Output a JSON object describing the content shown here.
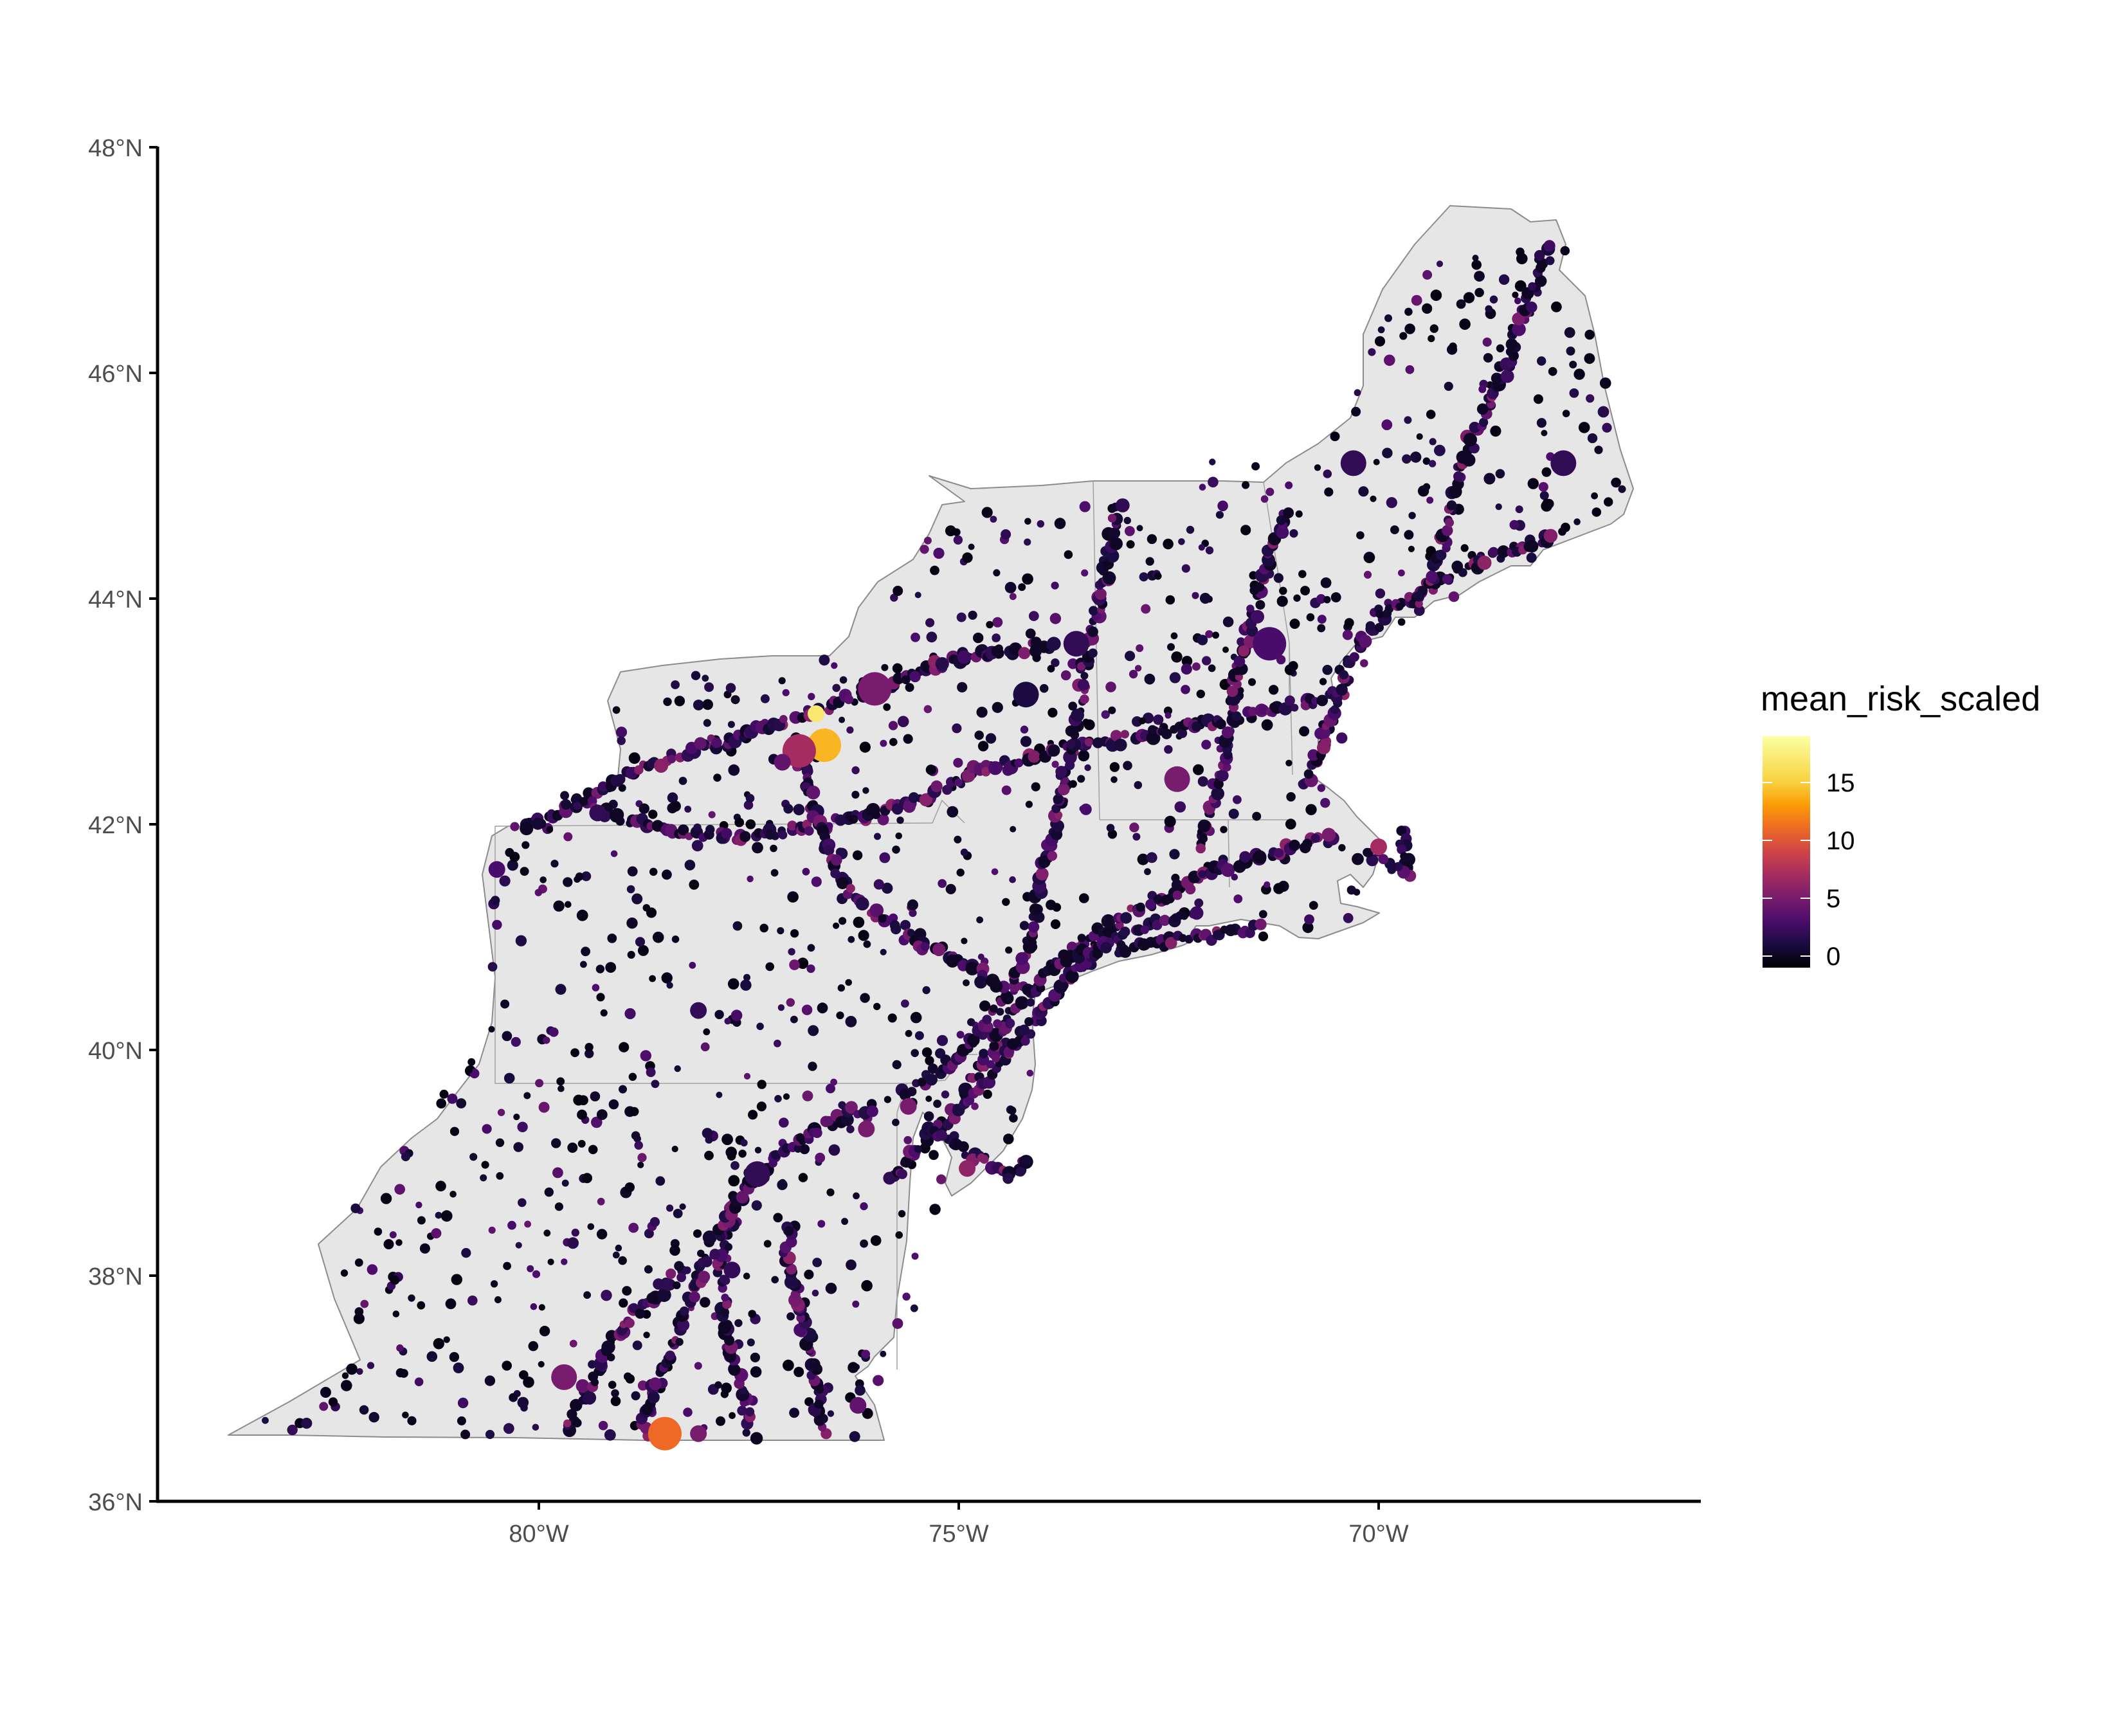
{
  "chart_data": {
    "type": "scatter",
    "x_ticks": [
      "80°W",
      "75°W",
      "70°W"
    ],
    "x_tick_values": [
      -80,
      -75,
      -70
    ],
    "y_ticks": [
      "36°N",
      "38°N",
      "40°N",
      "42°N",
      "44°N",
      "46°N",
      "48°N"
    ],
    "y_tick_values": [
      36,
      38,
      40,
      42,
      44,
      46,
      48
    ],
    "xlim": [
      -84.5,
      -66.2
    ],
    "ylim": [
      36,
      48
    ],
    "legend": {
      "title": "mean_risk_scaled",
      "labels": [
        "15",
        "10",
        "5",
        "0"
      ],
      "values": [
        15,
        10,
        5,
        0
      ],
      "range": [
        -1,
        19
      ],
      "placement": "right",
      "palette": "inferno"
    },
    "colors": {
      "land_fill": "#e6e6e6",
      "border": "#8c8c8c",
      "axis": "#000000",
      "colorbar_top": "#fcffa4",
      "colorbar_bottom": "#000004"
    },
    "highlighted_points": [
      {
        "lon": -76.6,
        "lat": 42.7,
        "risk": 14,
        "size": 3
      },
      {
        "lon": -76.9,
        "lat": 42.65,
        "risk": 7,
        "size": 3
      },
      {
        "lon": -76.7,
        "lat": 42.98,
        "risk": 17,
        "size": 1
      },
      {
        "lon": -76.0,
        "lat": 43.2,
        "risk": 5,
        "size": 3
      },
      {
        "lon": -78.5,
        "lat": 36.6,
        "risk": 11,
        "size": 3
      },
      {
        "lon": -78.1,
        "lat": 36.6,
        "risk": 5,
        "size": 1
      },
      {
        "lon": -79.7,
        "lat": 37.1,
        "risk": 5,
        "size": 2
      },
      {
        "lon": -71.3,
        "lat": 43.6,
        "risk": 3,
        "size": 3
      },
      {
        "lon": -73.6,
        "lat": 43.6,
        "risk": 2,
        "size": 2
      },
      {
        "lon": -74.2,
        "lat": 43.15,
        "risk": 1,
        "size": 2
      },
      {
        "lon": -72.4,
        "lat": 42.4,
        "risk": 5,
        "size": 2
      },
      {
        "lon": -70.3,
        "lat": 45.2,
        "risk": 2,
        "size": 2
      },
      {
        "lon": -67.8,
        "lat": 45.2,
        "risk": 2,
        "size": 2
      },
      {
        "lon": -80.5,
        "lat": 41.6,
        "risk": 3,
        "size": 1
      },
      {
        "lon": -77.1,
        "lat": 42.55,
        "risk": 4,
        "size": 1
      },
      {
        "lon": -78.1,
        "lat": 40.35,
        "risk": 2,
        "size": 1
      },
      {
        "lon": -77.7,
        "lat": 38.05,
        "risk": 2,
        "size": 1
      },
      {
        "lon": -77.4,
        "lat": 38.9,
        "risk": 2,
        "size": 2
      },
      {
        "lon": -76.2,
        "lat": 36.85,
        "risk": 4,
        "size": 1
      },
      {
        "lon": -75.6,
        "lat": 39.5,
        "risk": 5,
        "size": 1
      },
      {
        "lon": -70.0,
        "lat": 41.8,
        "risk": 7,
        "size": 1
      },
      {
        "lon": -74.9,
        "lat": 38.95,
        "risk": 6,
        "size": 1
      },
      {
        "lon": -76.1,
        "lat": 39.3,
        "risk": 5,
        "size": 1
      },
      {
        "lon": -79.3,
        "lat": 42.1,
        "risk": 2,
        "size": 1
      }
    ]
  }
}
